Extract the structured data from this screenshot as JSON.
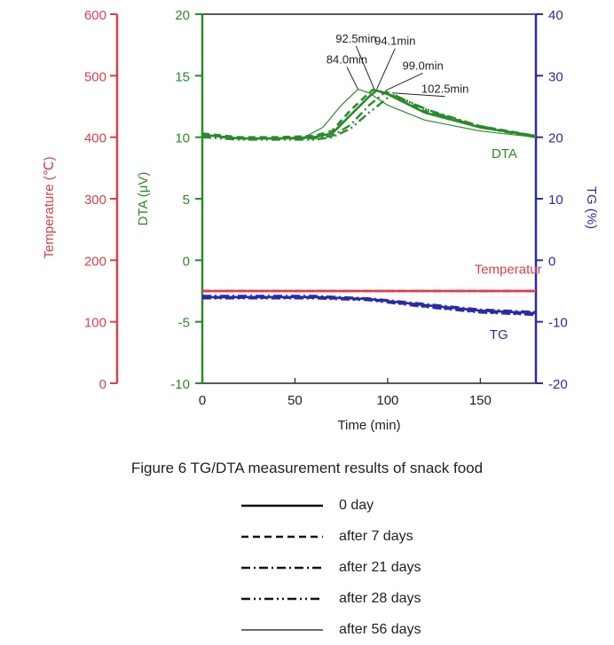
{
  "figure": {
    "caption": "Figure 6  TG/DTA measurement results of snack food"
  },
  "chart_data": {
    "type": "line",
    "xlabel": "Time  (min)",
    "xlim": [
      0,
      180
    ],
    "xticks": [
      0,
      50,
      100,
      150
    ],
    "axes": {
      "temperature": {
        "label": "Temperature (℃)",
        "lim": [
          0,
          600
        ],
        "ticks": [
          0,
          100,
          200,
          300,
          400,
          500,
          600
        ],
        "color": "#d9404a"
      },
      "dta": {
        "label": "DTA (μV)",
        "lim": [
          -10,
          20
        ],
        "ticks": [
          -10,
          -5,
          0,
          5,
          10,
          15,
          20
        ],
        "color": "#2a8a2a"
      },
      "tg": {
        "label": "TG (%)",
        "lim": [
          -20,
          40
        ],
        "ticks": [
          -20,
          -10,
          0,
          10,
          20,
          30,
          40
        ],
        "color": "#2a2aa8"
      }
    },
    "curve_labels": {
      "dta": "DTA",
      "temperature": "Temperatur",
      "tg": "TG"
    },
    "peak_annotations": [
      {
        "text": "84.0min",
        "x": 84.0,
        "y": 13.9
      },
      {
        "text": "92.5min",
        "x": 92.5,
        "y": 14.0
      },
      {
        "text": "94.1min",
        "x": 94.1,
        "y": 13.9
      },
      {
        "text": "99.0min",
        "x": 99.0,
        "y": 13.8
      },
      {
        "text": "102.5min",
        "x": 102.5,
        "y": 13.6
      }
    ],
    "series": [
      {
        "name": "0 day",
        "style": "solid",
        "dta": {
          "axis": "dta",
          "x": [
            0,
            20,
            40,
            60,
            70,
            80,
            90,
            94.1,
            100,
            120,
            150,
            180
          ],
          "y": [
            10.2,
            9.9,
            9.9,
            10.0,
            10.3,
            11.8,
            13.3,
            13.8,
            13.5,
            12.0,
            10.8,
            10.1
          ]
        },
        "tg": {
          "axis": "tg",
          "x": [
            0,
            60,
            90,
            120,
            150,
            180
          ],
          "y": [
            -6.0,
            -6.0,
            -6.3,
            -7.3,
            -8.2,
            -8.6
          ]
        },
        "temperature": {
          "axis": "temperature",
          "x": [
            0,
            180
          ],
          "y": [
            150,
            150
          ]
        }
      },
      {
        "name": "after 7 days",
        "style": "dashed",
        "dta": {
          "axis": "dta",
          "x": [
            0,
            20,
            40,
            60,
            70,
            80,
            90,
            92.5,
            100,
            120,
            150,
            180
          ],
          "y": [
            10.3,
            10.0,
            10.0,
            10.1,
            10.5,
            12.2,
            13.6,
            13.9,
            13.5,
            12.1,
            10.9,
            10.1
          ]
        },
        "tg": {
          "axis": "tg",
          "x": [
            0,
            60,
            90,
            120,
            150,
            180
          ],
          "y": [
            -6.1,
            -6.1,
            -6.4,
            -7.5,
            -8.4,
            -8.8
          ]
        },
        "temperature": {
          "axis": "temperature",
          "x": [
            0,
            180
          ],
          "y": [
            150,
            150
          ]
        }
      },
      {
        "name": "after 21 days",
        "style": "dashdot",
        "dta": {
          "axis": "dta",
          "x": [
            0,
            20,
            40,
            60,
            70,
            80,
            90,
            99.0,
            105,
            120,
            150,
            180
          ],
          "y": [
            10.1,
            9.9,
            9.9,
            9.9,
            10.1,
            11.0,
            12.6,
            13.7,
            13.3,
            12.3,
            10.9,
            10.0
          ]
        },
        "tg": {
          "axis": "tg",
          "x": [
            0,
            60,
            90,
            120,
            150,
            180
          ],
          "y": [
            -5.8,
            -5.8,
            -6.2,
            -7.1,
            -8.0,
            -8.4
          ]
        },
        "temperature": {
          "axis": "temperature",
          "x": [
            0,
            180
          ],
          "y": [
            150,
            150
          ]
        }
      },
      {
        "name": "after 28 days",
        "style": "dashdotdot",
        "dta": {
          "axis": "dta",
          "x": [
            0,
            20,
            40,
            60,
            70,
            80,
            90,
            102.5,
            110,
            125,
            150,
            180
          ],
          "y": [
            10.0,
            9.8,
            9.8,
            9.8,
            10.0,
            10.7,
            12.0,
            13.5,
            13.0,
            12.0,
            10.8,
            10.0
          ]
        },
        "tg": {
          "axis": "tg",
          "x": [
            0,
            60,
            90,
            120,
            150,
            180
          ],
          "y": [
            -6.2,
            -6.2,
            -6.5,
            -7.6,
            -8.5,
            -8.9
          ]
        },
        "temperature": {
          "axis": "temperature",
          "x": [
            0,
            180
          ],
          "y": [
            150,
            150
          ]
        }
      },
      {
        "name": "after 56 days",
        "style": "thin",
        "dta": {
          "axis": "dta",
          "x": [
            0,
            20,
            40,
            55,
            65,
            75,
            84.0,
            90,
            100,
            120,
            150,
            180
          ],
          "y": [
            10.2,
            9.9,
            9.9,
            10.0,
            10.8,
            12.6,
            13.9,
            13.6,
            12.6,
            11.4,
            10.5,
            10.0
          ]
        },
        "tg": {
          "axis": "tg",
          "x": [
            0,
            60,
            90,
            120,
            150,
            180
          ],
          "y": [
            -5.9,
            -5.9,
            -6.3,
            -7.2,
            -8.1,
            -8.5
          ]
        },
        "temperature": {
          "axis": "temperature",
          "x": [
            0,
            180
          ],
          "y": [
            150,
            150
          ]
        }
      }
    ]
  }
}
